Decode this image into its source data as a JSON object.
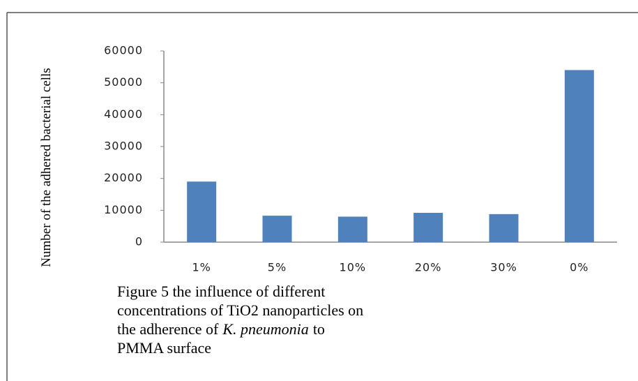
{
  "chart_data": {
    "type": "bar",
    "ylabel": "Number of the adhered bacterial cells",
    "categories": [
      "1%",
      "5%",
      "10%",
      "20%",
      "30%",
      "0%"
    ],
    "values": [
      19000,
      8300,
      8000,
      9200,
      8800,
      54000
    ],
    "color": "#4f81bd",
    "ylim": [
      0,
      60000
    ],
    "yticks": [
      0,
      10000,
      20000,
      30000,
      40000,
      50000,
      60000
    ],
    "grid": false,
    "caption": [
      "Figure 5 the influence of different",
      "concentrations of TiO2  nanoparticles on",
      "the adherence of",
      "K. pneumonia",
      "to",
      "PMMA surface"
    ]
  }
}
